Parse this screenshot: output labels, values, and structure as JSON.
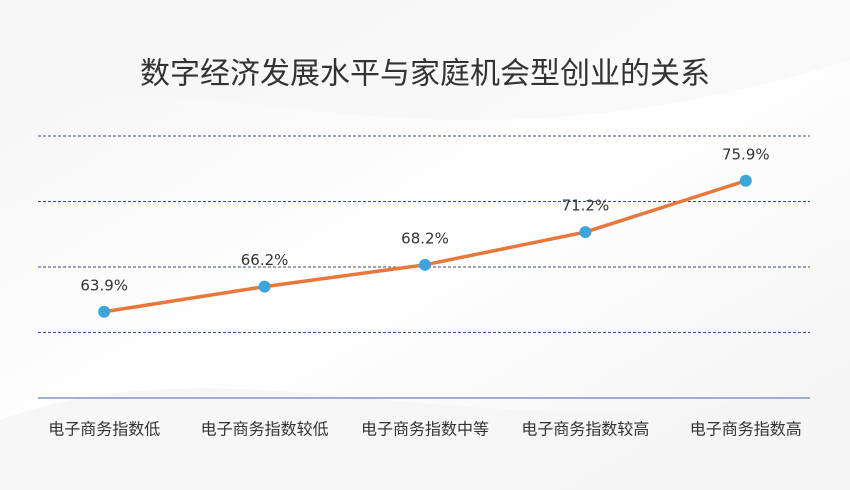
{
  "chart_data": {
    "type": "line",
    "title": "数字经济发展水平与家庭机会型创业的关系",
    "categories": [
      "电子商务指数低",
      "电子商务指数较低",
      "电子商务指数中等",
      "电子商务指数较高",
      "电子商务指数高"
    ],
    "values": [
      63.9,
      66.2,
      68.2,
      71.2,
      75.9
    ],
    "value_labels": [
      "63.9%",
      "66.2%",
      "68.2%",
      "71.2%",
      "75.9%"
    ],
    "color": "#e8773a",
    "marker_color": "#3aa6dd",
    "ylim": [
      56,
      80
    ],
    "yticks": [
      56,
      62,
      68,
      74,
      80
    ],
    "grid": true
  }
}
